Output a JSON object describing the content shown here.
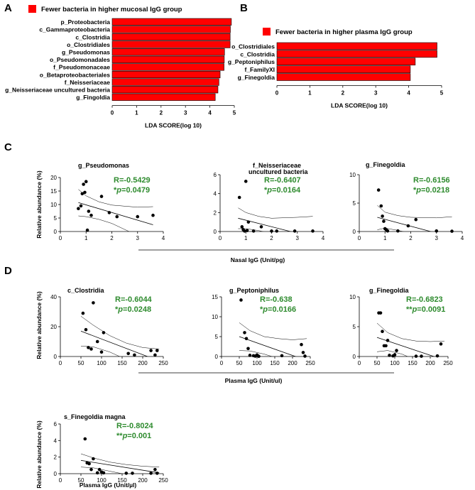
{
  "panels": {
    "A": "A",
    "B": "B",
    "C": "C",
    "D": "D"
  },
  "chart_data": [
    {
      "id": "A",
      "type": "bar",
      "orientation": "horizontal",
      "legend": "Fewer bacteria in higher mucosal IgG group",
      "color": "#ff0000",
      "categories": [
        "p_Proteobacteria",
        "c_Gammaproteobacteria",
        "c_Clostridia",
        "o_Clostridiales",
        "g_Pseudomonas",
        "o_Pseudomonadales",
        "f_Pseudomonaceae",
        "o_Betaproteobacteriales",
        "f_Neisseriaceae",
        "g_Neisseriaceae uncultured bacteria",
        "g_Fingoldia"
      ],
      "values": [
        4.88,
        4.84,
        4.83,
        4.83,
        4.6,
        4.59,
        4.58,
        4.42,
        4.37,
        4.33,
        4.22
      ],
      "xlabel": "LDA SCORE(log 10)",
      "xlim": [
        0,
        5
      ],
      "xticks": [
        "0",
        "1",
        "2",
        "3",
        "4",
        "5"
      ]
    },
    {
      "id": "B",
      "type": "bar",
      "orientation": "horizontal",
      "legend": "Fewer bacteria in higher plasma IgG group",
      "color": "#ff0000",
      "categories": [
        "o_Clostridiales",
        "c_Clostridia",
        "g_Peptoniphilus",
        "f_FamilyXI",
        "g_Finegoldia"
      ],
      "values": [
        4.86,
        4.86,
        4.2,
        4.05,
        4.05
      ],
      "xlabel": "LDA SCORE(log 10)",
      "xlim": [
        0,
        5
      ],
      "xticks": [
        "0",
        "1",
        "2",
        "3",
        "4",
        "5"
      ]
    },
    {
      "id": "C1",
      "type": "scatter",
      "title": "g_Pseudomonas",
      "r": "R=-0.5429",
      "p_prefix": "*",
      "p_italic": "p",
      "p_value": "=0.0479",
      "xlim": [
        0,
        4
      ],
      "ylim": [
        0,
        20
      ],
      "xticks": [
        "0",
        "1",
        "2",
        "3",
        "4"
      ],
      "yticks": [
        "0",
        "5",
        "10",
        "15",
        "20"
      ],
      "x": [
        0.7,
        0.8,
        0.85,
        0.9,
        0.95,
        1.0,
        1.05,
        1.1,
        1.2,
        1.6,
        1.9,
        2.2,
        3.0,
        3.6
      ],
      "y": [
        8.5,
        9.5,
        14,
        17.5,
        14.5,
        18.5,
        0.5,
        7.5,
        6,
        13,
        7,
        5.5,
        5.5,
        6
      ],
      "fit": [
        [
          0.7,
          10.7
        ],
        [
          3.6,
          2.5
        ]
      ],
      "band_upper": [
        [
          0.7,
          15.6
        ],
        [
          1.0,
          13.2
        ],
        [
          1.5,
          11.0
        ],
        [
          2.0,
          9.8
        ],
        [
          3.0,
          9.0
        ],
        [
          3.6,
          9.2
        ]
      ],
      "band_lower": [
        [
          0.7,
          5.8
        ],
        [
          1.0,
          5.5
        ],
        [
          1.5,
          4.5
        ],
        [
          2.0,
          3.0
        ],
        [
          3.0,
          -1.5
        ],
        [
          3.6,
          -4
        ]
      ]
    },
    {
      "id": "C2",
      "type": "scatter",
      "title": "f_Neisseriaceae\nuncultured bacteria",
      "r": "R=-0.6407",
      "p_prefix": "*",
      "p_italic": "p",
      "p_value": "=0.0164",
      "xlim": [
        0,
        4
      ],
      "ylim": [
        0,
        6
      ],
      "xticks": [
        "0",
        "1",
        "2",
        "3",
        "4"
      ],
      "yticks": [
        "0",
        "2",
        "4",
        "6"
      ],
      "x": [
        0.75,
        0.85,
        0.9,
        0.95,
        1.0,
        1.05,
        1.1,
        1.3,
        1.6,
        2.0,
        2.2,
        2.9,
        3.6
      ],
      "y": [
        3.6,
        0.5,
        0.2,
        0.05,
        5.3,
        0.1,
        1.0,
        0.05,
        0.5,
        0.05,
        0.05,
        0.05,
        0.05
      ],
      "fit": [
        [
          0.7,
          1.4
        ],
        [
          3.6,
          -0.6
        ]
      ],
      "band_upper": [
        [
          0.7,
          2.5
        ],
        [
          1.0,
          2.0
        ],
        [
          1.5,
          1.6
        ],
        [
          2.0,
          1.4
        ],
        [
          3.0,
          1.5
        ],
        [
          3.6,
          1.6
        ]
      ],
      "band_lower": [
        [
          0.7,
          0.3
        ],
        [
          1.0,
          0.3
        ],
        [
          1.5,
          0.1
        ],
        [
          2.0,
          -0.2
        ],
        [
          3.0,
          -1.6
        ],
        [
          3.6,
          -2.5
        ]
      ]
    },
    {
      "id": "C3",
      "type": "scatter",
      "title": "g_Finegoldia",
      "r": "R=-0.6156",
      "p_prefix": "*",
      "p_italic": "p",
      "p_value": "=0.0218",
      "xlim": [
        0,
        4
      ],
      "ylim": [
        0,
        10
      ],
      "xticks": [
        "0",
        "1",
        "2",
        "3",
        "4"
      ],
      "yticks": [
        "0",
        "5",
        "10"
      ],
      "x": [
        0.75,
        0.85,
        0.9,
        0.95,
        1.0,
        1.05,
        1.1,
        1.5,
        1.9,
        2.2,
        3.0,
        3.6
      ],
      "y": [
        7.3,
        4.5,
        2.7,
        1.8,
        0.5,
        0.3,
        0.1,
        0.1,
        1.0,
        2.1,
        0.1,
        0.05
      ],
      "fit": [
        [
          0.7,
          2.5
        ],
        [
          3.6,
          -1.0
        ]
      ],
      "band_upper": [
        [
          0.7,
          4.6
        ],
        [
          1.0,
          3.4
        ],
        [
          1.5,
          2.8
        ],
        [
          2.0,
          2.5
        ],
        [
          3.0,
          2.4
        ],
        [
          3.6,
          2.6
        ]
      ],
      "band_lower": [
        [
          0.7,
          0.3
        ],
        [
          1.0,
          0.6
        ],
        [
          1.5,
          0.2
        ],
        [
          2.0,
          -0.3
        ],
        [
          3.0,
          -2.2
        ],
        [
          3.6,
          -3.4
        ]
      ]
    },
    {
      "id": "D1",
      "type": "scatter",
      "title": "c_Clostridia",
      "r": "R=-0.6044",
      "p_prefix": "*",
      "p_italic": "p",
      "p_value": "=0.0248",
      "xlim": [
        0,
        250
      ],
      "ylim": [
        0,
        40
      ],
      "xticks": [
        "0",
        "50",
        "100",
        "150",
        "200",
        "250"
      ],
      "yticks": [
        "0",
        "20",
        "40"
      ],
      "x": [
        55,
        62,
        68,
        75,
        80,
        90,
        100,
        105,
        165,
        180,
        220,
        230,
        235
      ],
      "y": [
        29,
        18,
        6,
        5,
        36,
        10,
        3,
        16,
        2,
        1,
        4,
        1,
        4
      ],
      "fit": [
        [
          50,
          17
        ],
        [
          240,
          -3
        ]
      ],
      "band_upper": [
        [
          50,
          27
        ],
        [
          80,
          21
        ],
        [
          120,
          14
        ],
        [
          160,
          9
        ],
        [
          200,
          6
        ],
        [
          240,
          5
        ]
      ],
      "band_lower": [
        [
          50,
          7
        ],
        [
          80,
          6.5
        ],
        [
          120,
          3
        ],
        [
          160,
          -2
        ],
        [
          200,
          -6
        ],
        [
          240,
          -10
        ]
      ]
    },
    {
      "id": "D2",
      "type": "scatter",
      "title": "g_Peptoniphilus",
      "r": "R=-0.638",
      "p_prefix": "*",
      "p_italic": "p",
      "p_value": "=0.0166",
      "xlim": [
        0,
        250
      ],
      "ylim": [
        0,
        15
      ],
      "xticks": [
        "0",
        "50",
        "100",
        "150",
        "200",
        "250"
      ],
      "yticks": [
        "0",
        "5",
        "10",
        "15"
      ],
      "x": [
        55,
        65,
        70,
        75,
        80,
        90,
        95,
        100,
        105,
        170,
        225,
        230,
        235
      ],
      "y": [
        14.2,
        6,
        4.5,
        2,
        0.3,
        0.2,
        0.1,
        0.4,
        0.05,
        0.2,
        3,
        1,
        0.1
      ],
      "fit": [
        [
          50,
          5
        ],
        [
          240,
          -1
        ]
      ],
      "band_upper": [
        [
          50,
          8.5
        ],
        [
          80,
          6.5
        ],
        [
          120,
          5
        ],
        [
          160,
          4.5
        ],
        [
          200,
          4.2
        ],
        [
          240,
          4.5
        ]
      ],
      "band_lower": [
        [
          50,
          1.5
        ],
        [
          80,
          1.4
        ],
        [
          120,
          0.6
        ],
        [
          160,
          -0.5
        ],
        [
          200,
          -2
        ],
        [
          240,
          -3.5
        ]
      ]
    },
    {
      "id": "D3",
      "type": "scatter",
      "title": "g_Finegoldia",
      "r": "R=-0.6823",
      "p_prefix": "**",
      "p_italic": "p",
      "p_value": "=0.0091",
      "xlim": [
        0,
        250
      ],
      "ylim": [
        0,
        10
      ],
      "xticks": [
        "0",
        "50",
        "100",
        "150",
        "200",
        "250"
      ],
      "yticks": [
        "0",
        "5",
        "10"
      ],
      "x": [
        55,
        60,
        65,
        70,
        75,
        80,
        85,
        95,
        100,
        105,
        160,
        175,
        220,
        230
      ],
      "y": [
        7.3,
        7.3,
        4.2,
        1.8,
        1.8,
        2.7,
        0.2,
        0.1,
        0.3,
        1.0,
        0.05,
        0.05,
        0.1,
        2.1
      ],
      "fit": [
        [
          50,
          3.2
        ],
        [
          240,
          -0.6
        ]
      ],
      "band_upper": [
        [
          50,
          5.6
        ],
        [
          80,
          4.0
        ],
        [
          120,
          3.0
        ],
        [
          160,
          2.6
        ],
        [
          200,
          2.5
        ],
        [
          240,
          2.6
        ]
      ],
      "band_lower": [
        [
          50,
          0.8
        ],
        [
          80,
          1.0
        ],
        [
          120,
          0.4
        ],
        [
          160,
          -0.6
        ],
        [
          200,
          -1.8
        ],
        [
          240,
          -3
        ]
      ]
    },
    {
      "id": "D4",
      "type": "scatter",
      "title": "s_Finegoldia magna",
      "r": "R=-0.8024",
      "p_prefix": "**",
      "p_italic": "p",
      "p_value": "=0.001",
      "xlim": [
        0,
        250
      ],
      "ylim": [
        0,
        6
      ],
      "xticks": [
        "0",
        "50",
        "100",
        "150",
        "200",
        "250"
      ],
      "yticks": [
        "0",
        "2",
        "4",
        "6"
      ],
      "x": [
        60,
        65,
        70,
        75,
        80,
        90,
        95,
        100,
        105,
        160,
        175,
        220,
        230,
        235
      ],
      "y": [
        4.2,
        1.3,
        1.2,
        0.5,
        1.8,
        0.1,
        0.5,
        0.2,
        0.1,
        0.05,
        0.05,
        0.05,
        0.5,
        0.05
      ],
      "fit": [
        [
          50,
          1.6
        ],
        [
          240,
          0.1
        ]
      ],
      "band_upper": [
        [
          50,
          2.4
        ],
        [
          80,
          1.9
        ],
        [
          120,
          1.4
        ],
        [
          160,
          1.1
        ],
        [
          200,
          0.9
        ],
        [
          240,
          0.8
        ]
      ],
      "band_lower": [
        [
          50,
          0.8
        ],
        [
          80,
          0.7
        ],
        [
          120,
          0.3
        ],
        [
          160,
          -0.1
        ],
        [
          200,
          -0.5
        ],
        [
          240,
          -0.8
        ]
      ]
    }
  ],
  "axes": {
    "ylabel": "Relative abundance (%)",
    "xlabel_C": "Nasal IgG (Unit/pg)",
    "xlabel_D": "Plasma IgG (Unit/ul)",
    "xlabel_D4": "Plasma IgG (Unit/µl)"
  }
}
